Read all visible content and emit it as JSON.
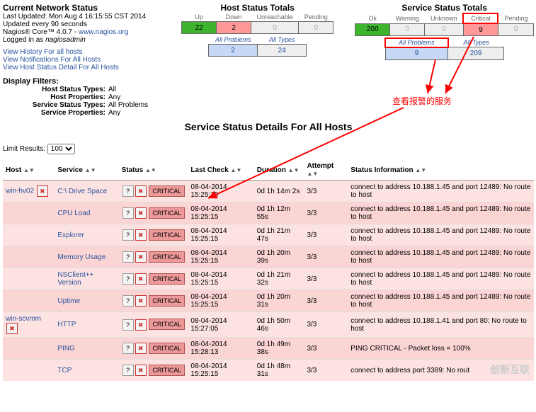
{
  "info": {
    "title": "Current Network Status",
    "last_updated": "Last Updated: Mon Aug 4 16:15:55 CST 2014",
    "update_every": "Updated every 90 seconds",
    "product_pre": "Nagios® Core™ 4.0.7 - ",
    "product_link": "www.nagios.org",
    "logged_pre": "Logged in as ",
    "logged_user": "nagiosadmin",
    "links": [
      "View History For all hosts",
      "View Notifications For All Hosts",
      "View Host Status Detail For All Hosts"
    ]
  },
  "host_totals": {
    "title": "Host Status Totals",
    "headers": [
      "Up",
      "Down",
      "Unreachable",
      "Pending"
    ],
    "values": [
      "22",
      "2",
      "0",
      "0"
    ],
    "cell_bg": [
      "#3eb42e",
      "#ff9999",
      "#eeeeee",
      "#eeeeee"
    ],
    "sub_headers": [
      "All Problems",
      "All Types"
    ],
    "sub_values": [
      "2",
      "24"
    ],
    "sub_bg": [
      "#c6d8f6",
      "#eeeeee"
    ]
  },
  "svc_totals": {
    "title": "Service Status Totals",
    "headers": [
      "Ok",
      "Warning",
      "Unknown",
      "Critical",
      "Pending"
    ],
    "values": [
      "200",
      "0",
      "0",
      "9",
      "0"
    ],
    "cell_bg": [
      "#3eb42e",
      "#eeeeee",
      "#eeeeee",
      "#ff9999",
      "#eeeeee"
    ],
    "sub_headers": [
      "All Problems",
      "All Types"
    ],
    "sub_values": [
      "9",
      "209"
    ],
    "sub_bg": [
      "#c6d8f6",
      "#eeeeee"
    ]
  },
  "filters": {
    "title": "Display Filters:",
    "rows": [
      {
        "label": "Host Status Types:",
        "value": "All"
      },
      {
        "label": "Host Properties:",
        "value": "Any"
      },
      {
        "label": "Service Status Types:",
        "value": "All Problems"
      },
      {
        "label": "Service Properties:",
        "value": "Any"
      }
    ],
    "limit_label": "Limit Results:",
    "limit_value": "100"
  },
  "section_heading": "Service Status Details For All Hosts",
  "annotation": "查看报警的服务",
  "status_table": {
    "headers": [
      "Host",
      "Service",
      "Status",
      "Last Check",
      "Duration",
      "Attempt",
      "Status Information"
    ],
    "rows": [
      {
        "host": "win-hv02",
        "service": "C:\\ Drive Space",
        "status": "CRITICAL",
        "last": "08-04-2014 15:25:15",
        "dur": "0d 1h 14m 2s",
        "att": "3/3",
        "info": "connect to address 10.188.1.45 and port 12489: No route to host"
      },
      {
        "host": "",
        "service": "CPU Load",
        "status": "CRITICAL",
        "last": "08-04-2014 15:25:15",
        "dur": "0d 1h 12m 55s",
        "att": "3/3",
        "info": "connect to address 10.188.1.45 and port 12489: No route to host"
      },
      {
        "host": "",
        "service": "Explorer",
        "status": "CRITICAL",
        "last": "08-04-2014 15:25:15",
        "dur": "0d 1h 21m 47s",
        "att": "3/3",
        "info": "connect to address 10.188.1.45 and port 12489: No route to host"
      },
      {
        "host": "",
        "service": "Memory Usage",
        "status": "CRITICAL",
        "last": "08-04-2014 15:25:15",
        "dur": "0d 1h 20m 39s",
        "att": "3/3",
        "info": "connect to address 10.188.1.45 and port 12489: No route to host"
      },
      {
        "host": "",
        "service": "NSClient++ Version",
        "status": "CRITICAL",
        "last": "08-04-2014 15:25:15",
        "dur": "0d 1h 21m 32s",
        "att": "3/3",
        "info": "connect to address 10.188.1.45 and port 12489: No route to host"
      },
      {
        "host": "",
        "service": "Uptime",
        "status": "CRITICAL",
        "last": "08-04-2014 15:25:15",
        "dur": "0d 1h 20m 31s",
        "att": "3/3",
        "info": "connect to address 10.188.1.45 and port 12489: No route to host"
      },
      {
        "host": "win-scvmm",
        "service": "HTTP",
        "status": "CRITICAL",
        "last": "08-04-2014 15:27:05",
        "dur": "0d 1h 50m 46s",
        "att": "3/3",
        "info": "connect to address 10.188.1.41 and port 80: No route to host"
      },
      {
        "host": "",
        "service": "PING",
        "status": "CRITICAL",
        "last": "08-04-2014 15:28:13",
        "dur": "0d 1h 49m 38s",
        "att": "3/3",
        "info": "PING CRITICAL - Packet loss = 100%"
      },
      {
        "host": "",
        "service": "TCP",
        "status": "CRITICAL",
        "last": "08-04-2014 15:25:15",
        "dur": "0d 1h 48m 31s",
        "att": "3/3",
        "info": "connect to address port 3389: No rout"
      }
    ]
  },
  "arrow_style": {
    "stroke": "#ff0000",
    "stroke_width": 2
  },
  "watermark": "创新互联"
}
